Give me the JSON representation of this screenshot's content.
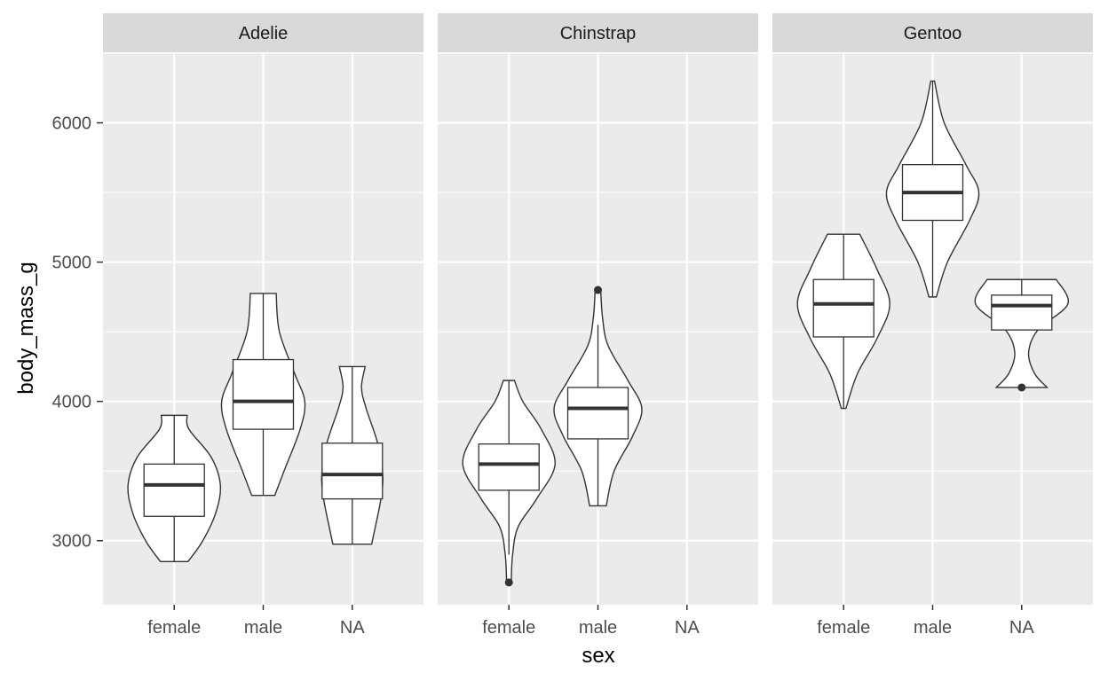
{
  "chart_data": {
    "type": "violin",
    "x_variable": "sex",
    "y_variable": "body_mass_g",
    "xlabel": "sex",
    "ylabel": "body_mass_g",
    "ylim": [
      2540,
      6500
    ],
    "y_ticks": [
      3000,
      4000,
      5000,
      6000
    ],
    "y_tick_labels": [
      "3000",
      "4000",
      "5000",
      "6000"
    ],
    "categories": [
      "female",
      "male",
      "NA"
    ],
    "grid": true,
    "legend": "none",
    "colors": {
      "panel_background": "#ebebeb",
      "strip_background": "#d9d9d9",
      "grid_major": "#ffffff",
      "violin_fill": "#ffffff",
      "outline": "#333333"
    },
    "facets": [
      {
        "label": "Adelie",
        "groups": [
          {
            "sex": "female",
            "min": 2850,
            "max": 3900,
            "q1": 3175,
            "median": 3400,
            "q3": 3550,
            "whisker_low": 2850,
            "whisker_high": 3900,
            "outliers": [],
            "violin": [
              [
                2850,
                0.3
              ],
              [
                3000,
                0.62
              ],
              [
                3200,
                0.9
              ],
              [
                3400,
                1.0
              ],
              [
                3600,
                0.8
              ],
              [
                3800,
                0.32
              ],
              [
                3900,
                0.28
              ]
            ]
          },
          {
            "sex": "male",
            "min": 3325,
            "max": 4775,
            "q1": 3800,
            "median": 4000,
            "q3": 4300,
            "whisker_low": 3325,
            "whisker_high": 4775,
            "outliers": [],
            "violin": [
              [
                3325,
                0.25
              ],
              [
                3500,
                0.45
              ],
              [
                3800,
                0.8
              ],
              [
                4000,
                0.9
              ],
              [
                4200,
                0.68
              ],
              [
                4500,
                0.35
              ],
              [
                4775,
                0.28
              ]
            ]
          },
          {
            "sex": "NA",
            "min": 2975,
            "max": 4250,
            "q1": 3300,
            "median": 3475,
            "q3": 3700,
            "whisker_low": 2975,
            "whisker_high": 4250,
            "outliers": [],
            "violin": [
              [
                2975,
                0.42
              ],
              [
                3100,
                0.5
              ],
              [
                3300,
                0.62
              ],
              [
                3475,
                0.66
              ],
              [
                3700,
                0.55
              ],
              [
                3950,
                0.3
              ],
              [
                4100,
                0.2
              ],
              [
                4250,
                0.28
              ]
            ]
          }
        ]
      },
      {
        "label": "Chinstrap",
        "groups": [
          {
            "sex": "female",
            "min": 2700,
            "max": 4150,
            "q1": 3362,
            "median": 3550,
            "q3": 3694,
            "whisker_low": 2900,
            "whisker_high": 4150,
            "outliers": [
              2700
            ],
            "violin": [
              [
                2700,
                0.05
              ],
              [
                2900,
                0.08
              ],
              [
                3100,
                0.2
              ],
              [
                3300,
                0.6
              ],
              [
                3550,
                1.0
              ],
              [
                3800,
                0.7
              ],
              [
                4000,
                0.3
              ],
              [
                4150,
                0.12
              ]
            ]
          },
          {
            "sex": "male",
            "min": 3250,
            "max": 4800,
            "q1": 3731,
            "median": 3950,
            "q3": 4100,
            "whisker_low": 3250,
            "whisker_high": 4550,
            "outliers": [
              4800
            ],
            "violin": [
              [
                3250,
                0.18
              ],
              [
                3500,
                0.35
              ],
              [
                3750,
                0.75
              ],
              [
                3950,
                0.95
              ],
              [
                4150,
                0.65
              ],
              [
                4400,
                0.22
              ],
              [
                4600,
                0.1
              ],
              [
                4800,
                0.06
              ]
            ]
          },
          {
            "sex": "NA",
            "min": null,
            "max": null,
            "q1": null,
            "median": null,
            "q3": null,
            "whisker_low": null,
            "whisker_high": null,
            "outliers": [],
            "violin": []
          }
        ]
      },
      {
        "label": "Gentoo",
        "groups": [
          {
            "sex": "female",
            "min": 3950,
            "max": 5200,
            "q1": 4463,
            "median": 4700,
            "q3": 4875,
            "whisker_low": 3950,
            "whisker_high": 5200,
            "outliers": [],
            "violin": [
              [
                3950,
                0.05
              ],
              [
                4200,
                0.3
              ],
              [
                4450,
                0.72
              ],
              [
                4700,
                1.0
              ],
              [
                4950,
                0.72
              ],
              [
                5200,
                0.35
              ]
            ]
          },
          {
            "sex": "male",
            "min": 4750,
            "max": 6300,
            "q1": 5300,
            "median": 5500,
            "q3": 5700,
            "whisker_low": 4750,
            "whisker_high": 6300,
            "outliers": [],
            "violin": [
              [
                4750,
                0.08
              ],
              [
                5000,
                0.32
              ],
              [
                5300,
                0.8
              ],
              [
                5500,
                1.0
              ],
              [
                5700,
                0.72
              ],
              [
                6000,
                0.25
              ],
              [
                6300,
                0.04
              ]
            ]
          },
          {
            "sex": "NA",
            "min": 4100,
            "max": 4875,
            "q1": 4513,
            "median": 4688,
            "q3": 4763,
            "whisker_low": 4513,
            "whisker_high": 4875,
            "outliers": [
              4100
            ],
            "violin": [
              [
                4100,
                0.55
              ],
              [
                4200,
                0.28
              ],
              [
                4350,
                0.15
              ],
              [
                4513,
                0.35
              ],
              [
                4700,
                1.0
              ],
              [
                4875,
                0.75
              ]
            ]
          }
        ]
      }
    ]
  }
}
